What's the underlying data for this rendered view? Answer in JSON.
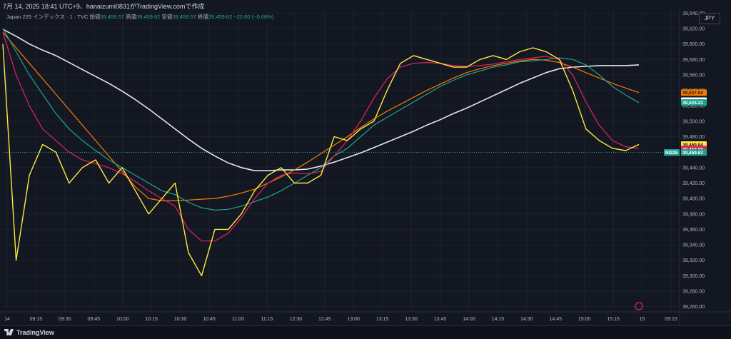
{
  "header": {
    "caption": "7月 14, 2025 18:41 UTC+9、hanaizumi0831がTradingView.comで作成"
  },
  "legend": {
    "symbol": "Japan 225 インデックス · 1 · TVC",
    "open_label": "始値",
    "open": "39,459.57",
    "high_label": "高値",
    "high": "39,459.62",
    "low_label": "安値",
    "low": "39,459.57",
    "close_label": "終値",
    "close": "39,459.62",
    "change": "−22.00 (−0.06%)"
  },
  "currency": "JPY",
  "footer": {
    "brand": "TradingView"
  },
  "colors": {
    "background": "#131722",
    "grid": "#1e222d",
    "price": "#ffeb3b",
    "up": "#26a69a",
    "down": "#ef5350",
    "ma_pink": "#e91e63",
    "ma_teal": "#1fa38a",
    "ma_orange": "#f57c00",
    "ma_white": "#e6e6e6"
  },
  "chart_data": {
    "type": "line",
    "instrument": "NI225",
    "interval": "1 minute",
    "x_labels": [
      "14",
      "09:15",
      "09:30",
      "09:45",
      "10:00",
      "10:15",
      "10:30",
      "10:45",
      "11:00",
      "11:15",
      "12:30",
      "12:45",
      "13:00",
      "13:15",
      "13:30",
      "13:45",
      "14:00",
      "14:15",
      "14:30",
      "14:45",
      "15:00",
      "15:15",
      "15",
      "09:15"
    ],
    "y_ticks": [
      39260,
      39280,
      39300,
      39320,
      39340,
      39360,
      39380,
      39400,
      39420,
      39440,
      39460,
      39480,
      39500,
      39520,
      39540,
      39560,
      39580,
      39600,
      39620,
      39640
    ],
    "ylim": [
      39256,
      39644
    ],
    "y_tick_format": "two-decimals-comma",
    "series": [
      {
        "id": "price",
        "color_key": "price",
        "values": [
          39600,
          39320,
          39430,
          39470,
          39460,
          39420,
          39440,
          39450,
          39420,
          39440,
          39410,
          39380,
          39400,
          39420,
          39330,
          39300,
          39360,
          39360,
          39380,
          39410,
          39430,
          39440,
          39420,
          39420,
          39430,
          39480,
          39475,
          39490,
          39500,
          39540,
          39575,
          39585,
          39580,
          39575,
          39570,
          39570,
          39580,
          39585,
          39580,
          39590,
          39595,
          39590,
          39580,
          39540,
          39490,
          39475,
          39465,
          39462,
          39470
        ]
      },
      {
        "id": "ma-pink",
        "color_key": "ma_pink",
        "values": [
          39615,
          39560,
          39520,
          39490,
          39475,
          39460,
          39450,
          39445,
          39440,
          39432,
          39422,
          39410,
          39400,
          39390,
          39360,
          39345,
          39345,
          39355,
          39375,
          39400,
          39420,
          39430,
          39433,
          39432,
          39435,
          39455,
          39475,
          39500,
          39530,
          39555,
          39570,
          39575,
          39576,
          39575,
          39572,
          39571,
          39572,
          39574,
          39577,
          39580,
          39582,
          39584,
          39580,
          39560,
          39525,
          39495,
          39475,
          39467,
          39465
        ]
      },
      {
        "id": "ma-teal",
        "color_key": "ma_teal",
        "values": [
          39620,
          39590,
          39560,
          39535,
          39510,
          39490,
          39475,
          39462,
          39450,
          39440,
          39430,
          39420,
          39410,
          39405,
          39395,
          39388,
          39385,
          39386,
          39390,
          39396,
          39402,
          39410,
          39420,
          39430,
          39440,
          39455,
          39465,
          39480,
          39495,
          39505,
          39515,
          39525,
          39535,
          39545,
          39553,
          39560,
          39565,
          39570,
          39573,
          39577,
          39578,
          39580,
          39582,
          39580,
          39573,
          39560,
          39545,
          39534,
          39524
        ]
      },
      {
        "id": "ma-orange",
        "color_key": "ma_orange",
        "values": [
          39615,
          39595,
          39575,
          39555,
          39535,
          39515,
          39495,
          39475,
          39455,
          39435,
          39415,
          39400,
          39397,
          39397,
          39398,
          39399,
          39400,
          39403,
          39407,
          39412,
          39420,
          39428,
          39437,
          39447,
          39458,
          39469,
          39480,
          39492,
          39503,
          39513,
          39522,
          39531,
          39540,
          39548,
          39556,
          39563,
          39568,
          39572,
          39575,
          39578,
          39580,
          39579,
          39576,
          39570,
          39563,
          39556,
          39549,
          39543,
          39537
        ]
      },
      {
        "id": "ma-white",
        "color_key": "ma_white",
        "values": [
          39619,
          39610,
          39600,
          39592,
          39585,
          39576,
          39567,
          39558,
          39549,
          39539,
          39528,
          39516,
          39503,
          39490,
          39477,
          39465,
          39455,
          39446,
          39440,
          39436,
          39436,
          39437,
          39437,
          39438,
          39442,
          39447,
          39453,
          39459,
          39466,
          39473,
          39480,
          39487,
          39495,
          39502,
          39510,
          39517,
          39525,
          39533,
          39541,
          39549,
          39556,
          39563,
          39568,
          39570,
          39571,
          39572,
          39572,
          39572,
          39573
        ]
      }
    ],
    "price_tags": [
      {
        "value": 39537.04,
        "label": "39,537.04",
        "bg": "#f57c00",
        "fg": "#131722"
      },
      {
        "value": 39526.7,
        "label": "39,526.70",
        "bg": "#ffffff",
        "fg": "#131722"
      },
      {
        "value": 39524.21,
        "label": "39,524.21",
        "bg": "#1fa38a",
        "fg": "#ffffff"
      },
      {
        "value": 39469.84,
        "label": "39,469.84",
        "bg": "#ffeb3b",
        "fg": "#131722"
      },
      {
        "value": 39463.99,
        "label": "39,463.99",
        "bg": "#e91e63",
        "fg": "#ffffff"
      },
      {
        "value": 39459.62,
        "label": "39,459.62",
        "bg": "#1fa38a",
        "fg": "#ffffff"
      }
    ],
    "last_price_label": "NI225",
    "last_price": 39459.62,
    "grid": true
  }
}
